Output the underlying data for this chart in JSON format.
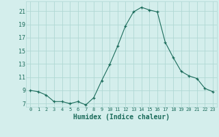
{
  "x": [
    0,
    1,
    2,
    3,
    4,
    5,
    6,
    7,
    8,
    9,
    10,
    11,
    12,
    13,
    14,
    15,
    16,
    17,
    18,
    19,
    20,
    21,
    22,
    23
  ],
  "y": [
    9.0,
    8.8,
    8.3,
    7.3,
    7.3,
    7.0,
    7.3,
    6.8,
    7.9,
    10.5,
    12.9,
    15.7,
    18.8,
    20.9,
    21.6,
    21.2,
    20.9,
    16.3,
    14.0,
    11.9,
    11.2,
    10.8,
    9.3,
    8.8
  ],
  "line_color": "#1a6b5a",
  "marker": "+",
  "marker_size": 3.5,
  "bg_color": "#d4eeec",
  "grid_color": "#b0d8d4",
  "xlabel": "Humidex (Indice chaleur)",
  "xlim": [
    -0.5,
    23.5
  ],
  "ylim": [
    6.5,
    22.5
  ],
  "yticks": [
    7,
    9,
    11,
    13,
    15,
    17,
    19,
    21
  ],
  "xticks": [
    0,
    1,
    2,
    3,
    4,
    5,
    6,
    7,
    8,
    9,
    10,
    11,
    12,
    13,
    14,
    15,
    16,
    17,
    18,
    19,
    20,
    21,
    22,
    23
  ],
  "tick_color": "#1a6b5a",
  "label_color": "#1a6b5a",
  "xlabel_fontsize": 7,
  "ytick_fontsize": 6,
  "xtick_fontsize": 5
}
